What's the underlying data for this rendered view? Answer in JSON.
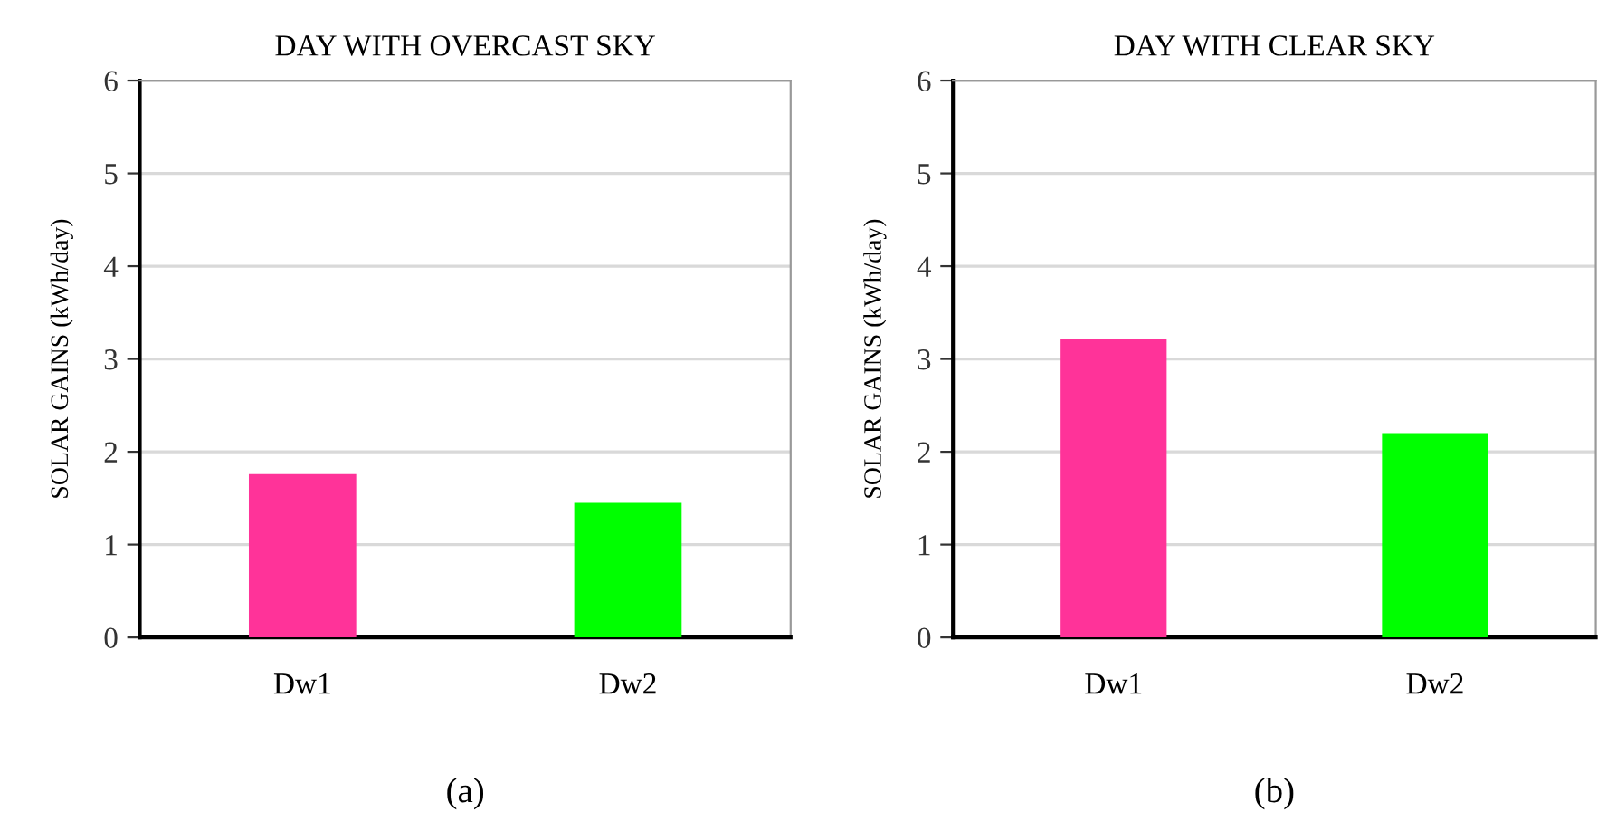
{
  "chart_data": [
    {
      "type": "bar",
      "title": "DAY WITH OVERCAST SKY",
      "ylabel": "SOLAR GAINS (kWh/day)",
      "categories": [
        "Dw1",
        "Dw2"
      ],
      "values": [
        1.76,
        1.45
      ],
      "colors": [
        "#ff3399",
        "#00ff00"
      ],
      "ylim": [
        0,
        6
      ],
      "yticks": [
        0,
        1,
        2,
        3,
        4,
        5,
        6
      ],
      "grid": "y",
      "annotations": [
        "(a)"
      ]
    },
    {
      "type": "bar",
      "title": "DAY WITH CLEAR SKY",
      "ylabel": "SOLAR GAINS (kWh/day)",
      "categories": [
        "Dw1",
        "Dw2"
      ],
      "values": [
        3.22,
        2.2
      ],
      "colors": [
        "#ff3399",
        "#00ff00"
      ],
      "ylim": [
        0,
        6
      ],
      "yticks": [
        0,
        1,
        2,
        3,
        4,
        5,
        6
      ],
      "grid": "y",
      "annotations": [
        "(b)"
      ]
    }
  ]
}
